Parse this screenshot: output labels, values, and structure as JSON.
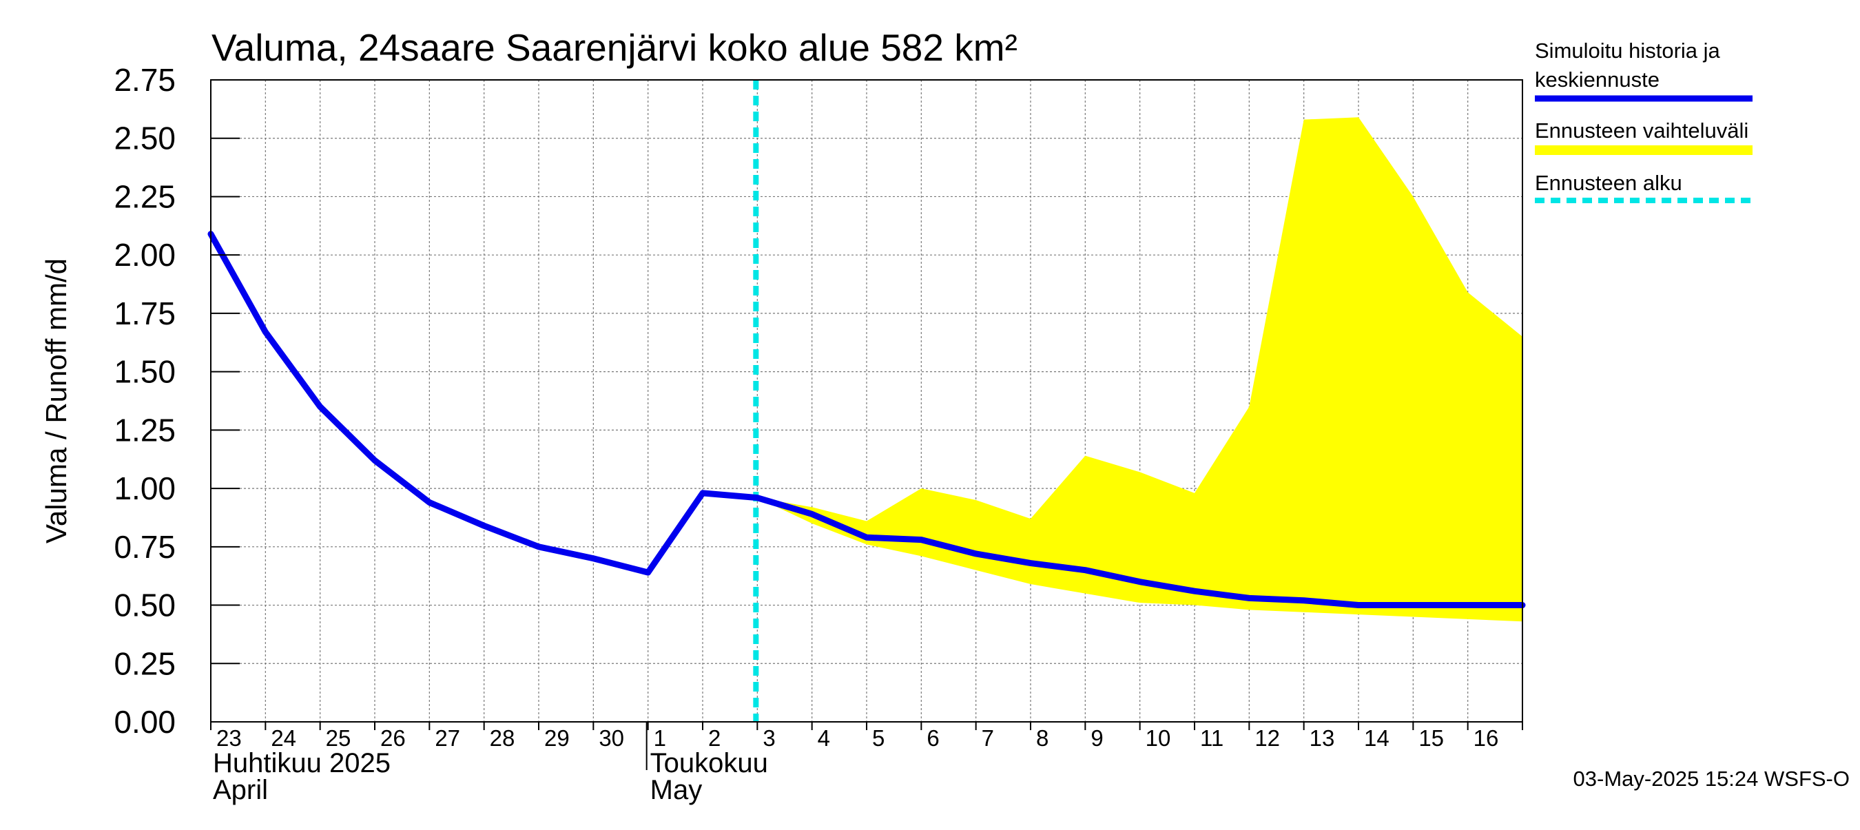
{
  "chart_data": {
    "type": "line",
    "title": "Valuma, 24saare Saarenjärvi koko alue 582 km²",
    "ylabel": "Valuma / Runoff     mm/d",
    "ylim": [
      0,
      2.75
    ],
    "yticks": [
      "0.00",
      "0.25",
      "0.50",
      "0.75",
      "1.00",
      "1.25",
      "1.50",
      "1.75",
      "2.00",
      "2.25",
      "2.50",
      "2.75"
    ],
    "grid": true,
    "x_labels": [
      "23",
      "24",
      "25",
      "26",
      "27",
      "28",
      "29",
      "30",
      "1",
      "2",
      "3",
      "4",
      "5",
      "6",
      "7",
      "8",
      "9",
      "10",
      "11",
      "12",
      "13",
      "14",
      "15",
      "16"
    ],
    "months": [
      {
        "line1": "Huhtikuu  2025",
        "line2": "April"
      },
      {
        "line1": "Toukokuu",
        "line2": "May"
      }
    ],
    "forecast_start_x": 10,
    "series": [
      {
        "name": "Simuloitu historia ja keskiennuste",
        "color": "#0000ee",
        "x": [
          0,
          1,
          2,
          3,
          4,
          5,
          6,
          7,
          8,
          9,
          10,
          11,
          12,
          13,
          14,
          15,
          16,
          17,
          18,
          19,
          20,
          21,
          22,
          23,
          24
        ],
        "values": [
          2.09,
          1.67,
          1.35,
          1.12,
          0.94,
          0.84,
          0.75,
          0.7,
          0.64,
          0.98,
          0.96,
          0.89,
          0.79,
          0.78,
          0.72,
          0.68,
          0.65,
          0.6,
          0.56,
          0.53,
          0.52,
          0.5,
          0.5,
          0.5,
          0.5
        ]
      },
      {
        "name": "Ennusteen vaihteluväli",
        "color": "#ffff00",
        "x": [
          10,
          11,
          12,
          13,
          14,
          15,
          16,
          17,
          18,
          19,
          20,
          21,
          22,
          23,
          24
        ],
        "upper": [
          0.96,
          0.92,
          0.86,
          1.0,
          0.95,
          0.87,
          1.14,
          1.07,
          0.98,
          1.35,
          2.58,
          2.59,
          2.25,
          1.84,
          1.65
        ],
        "lower": [
          0.96,
          0.85,
          0.76,
          0.71,
          0.65,
          0.59,
          0.55,
          0.51,
          0.5,
          0.48,
          0.47,
          0.46,
          0.45,
          0.44,
          0.43
        ]
      }
    ],
    "legend": {
      "position": "right",
      "items": [
        {
          "label_line1": "Simuloitu historia ja",
          "label_line2": "keskiennuste",
          "color": "#0000ee",
          "style": "solid"
        },
        {
          "label_line1": "Ennusteen vaihteluväli",
          "label_line2": "",
          "color": "#ffff00",
          "style": "solid"
        },
        {
          "label_line1": "Ennusteen alku",
          "label_line2": "",
          "color": "#00e5e5",
          "style": "dashed"
        }
      ]
    }
  },
  "footer": {
    "timestamp": "03-May-2025 15:24 WSFS-O"
  }
}
